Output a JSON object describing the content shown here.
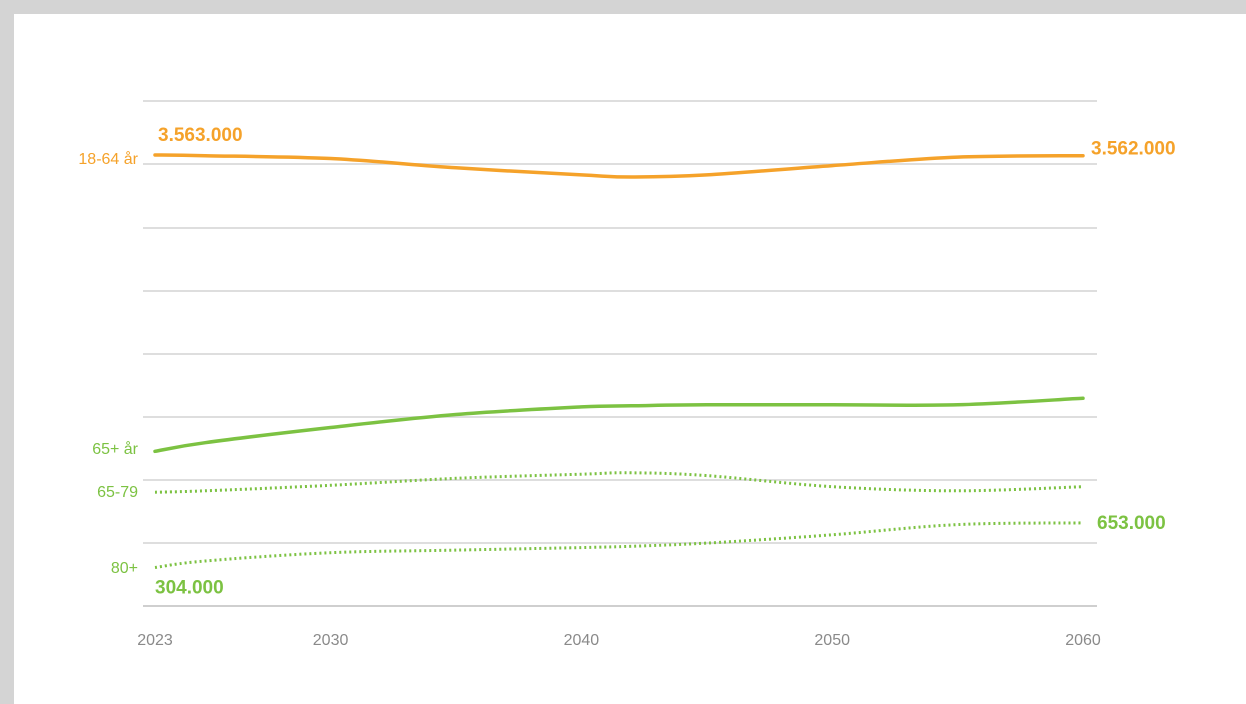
{
  "chart_data": {
    "type": "line",
    "title": "",
    "xlabel": "",
    "ylabel": "",
    "x": [
      2023,
      2025,
      2030,
      2035,
      2040,
      2042,
      2045,
      2050,
      2055,
      2060
    ],
    "x_ticks": [
      "2023",
      "2030",
      "2040",
      "2050",
      "2060"
    ],
    "y_ticks": [],
    "grid": true,
    "legend": "inline labels at left",
    "series": [
      {
        "name": "18-64 år",
        "color": "#f5a22a",
        "style": "solid",
        "values": [
          3563000,
          3562000,
          3558000,
          3545000,
          3535000,
          3532000,
          3535000,
          3548000,
          3560000,
          3562000
        ]
      },
      {
        "name": "65+ år",
        "color": "#7cc242",
        "style": "solid",
        "values": [
          1290000,
          1330000,
          1400000,
          1460000,
          1495000,
          1500000,
          1505000,
          1505000,
          1505000,
          1535000
        ]
      },
      {
        "name": "65-79",
        "color": "#7cc242",
        "style": "dotted",
        "values": [
          990000,
          995000,
          1015000,
          1040000,
          1055000,
          1060000,
          1050000,
          1010000,
          995000,
          1010000
        ]
      },
      {
        "name": "80+",
        "color": "#7cc242",
        "style": "dotted",
        "values": [
          304000,
          355000,
          420000,
          440000,
          460000,
          470000,
          495000,
          560000,
          640000,
          653000
        ]
      }
    ],
    "annotations": [
      {
        "series": "18-64 år",
        "position": "start",
        "text": "3.563.000",
        "color": "#f5a22a"
      },
      {
        "series": "18-64 år",
        "position": "end",
        "text": "3.562.000",
        "color": "#f5a22a"
      },
      {
        "series": "80+",
        "position": "start",
        "text": "304.000",
        "color": "#7cc242"
      },
      {
        "series": "80+",
        "position": "end",
        "text": "653.000",
        "color": "#7cc242"
      }
    ]
  }
}
